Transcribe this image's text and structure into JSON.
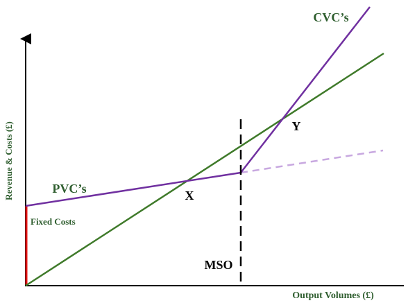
{
  "diagram": {
    "y_axis_label": "Revenue & Costs (£)",
    "x_axis_label": "Output Volumes (£)",
    "cvc_label": "CVC’s",
    "pvc_label": "PVC’s",
    "fixed_costs_label": "Fixed Costs",
    "mso_label": "MSO",
    "point_x_label": "X",
    "point_y_label": "Y"
  }
}
